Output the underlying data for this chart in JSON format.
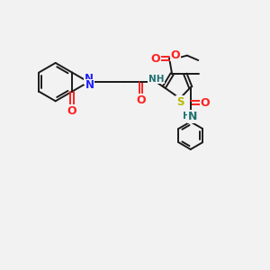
{
  "bg_color": "#f2f2f2",
  "bond_color": "#1a1a1a",
  "N_color": "#2020ff",
  "O_color": "#ff2020",
  "S_color": "#b8b800",
  "NH_color": "#207070",
  "lw": 1.4,
  "figsize": [
    3.0,
    3.0
  ],
  "dpi": 100,
  "xlim": [
    0,
    10
  ],
  "ylim": [
    0,
    10
  ]
}
